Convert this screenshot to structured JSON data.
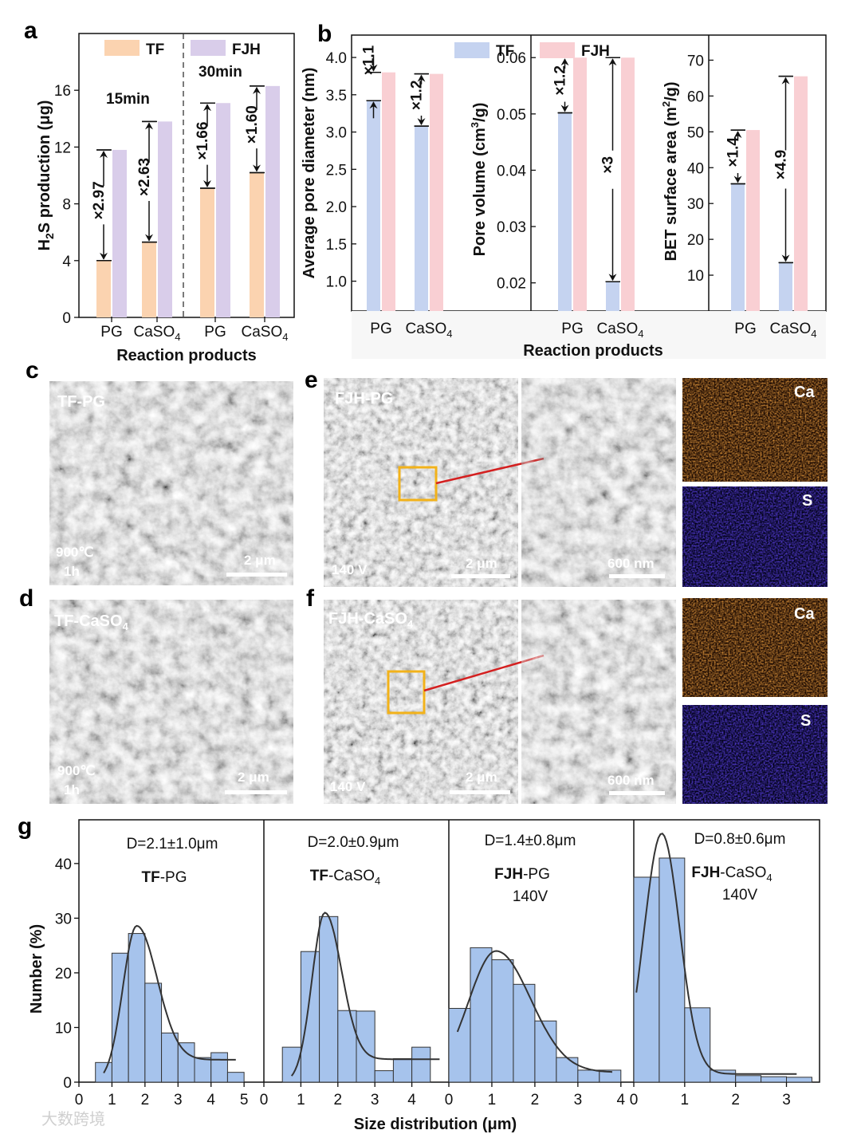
{
  "colors": {
    "tf_a": "#fbd3b0",
    "fjh_a": "#d9cdea",
    "tf_b": "#c5d3f0",
    "fjh_b": "#f9cfd3",
    "hist": "#a6c3ec",
    "curve": "#333333",
    "ca": "#d35a12",
    "s": "#1f10d8"
  },
  "panel_a": {
    "letter": "a",
    "legend": [
      "TF",
      "FJH"
    ],
    "time_labels": [
      "15min",
      "30min"
    ],
    "ylabel_main": "H",
    "ylabel_sub": "2",
    "ylabel_rest": "S production (μg)",
    "xlabel": "Reaction products",
    "yticks": [
      "0",
      "4",
      "8",
      "12",
      "16"
    ],
    "xcats": [
      {
        "main": "PG",
        "sub": ""
      },
      {
        "main": "CaSO",
        "sub": "4"
      },
      {
        "main": "PG",
        "sub": ""
      },
      {
        "main": "CaSO",
        "sub": "4"
      }
    ]
  },
  "panel_b": {
    "letter": "b",
    "legend": [
      "TF",
      "FJH"
    ],
    "xlabel": "Reaction products",
    "pore_diameter": {
      "ylabel": "Average pore diameter (nm)",
      "yticks": [
        "1.0",
        "1.5",
        "2.0",
        "2.5",
        "3.0",
        "3.5",
        "4.0"
      ],
      "xcats": [
        {
          "main": "PG",
          "sub": ""
        },
        {
          "main": "CaSO",
          "sub": "4"
        }
      ]
    },
    "pore_volume": {
      "ylabel_main": "Pore volume (cm",
      "ylabel_sup": "3",
      "ylabel_rest": "/g)",
      "yticks": [
        "0.02",
        "0.03",
        "0.04",
        "0.05",
        "0.06"
      ],
      "xcats": [
        {
          "main": "PG",
          "sub": ""
        },
        {
          "main": "CaSO",
          "sub": "4"
        }
      ]
    },
    "bet": {
      "ylabel_main": "BET surface area (m",
      "ylabel_sup": "2",
      "ylabel_rest": "/g)",
      "yticks": [
        "10",
        "20",
        "30",
        "40",
        "50",
        "60",
        "70"
      ],
      "xcats": [
        {
          "main": "PG",
          "sub": ""
        },
        {
          "main": "CaSO",
          "sub": "4"
        }
      ]
    }
  },
  "sem": {
    "c": {
      "letter": "c",
      "title": "TF-PG",
      "cond1": "900℃",
      "cond2": "1h",
      "scale": "2 μm"
    },
    "d": {
      "letter": "d",
      "title_main": "TF-CaSO",
      "title_sub": "4",
      "cond1": "900℃",
      "cond2": "1h",
      "scale": "2 μm"
    },
    "e": {
      "letter": "e",
      "title": "FJH-PG",
      "voltage": "140 V",
      "scale": "2 μm",
      "zoom_scale": "600 nm",
      "map1": "Ca",
      "map2": "S"
    },
    "f": {
      "letter": "f",
      "title_main": "FJH-CaSO",
      "title_sub": "4",
      "voltage": "140 V",
      "scale": "2 μm",
      "zoom_scale": "600 nm",
      "map1": "Ca",
      "map2": "S"
    }
  },
  "panel_g": {
    "letter": "g",
    "ylabel": "Number (%)",
    "xlabel": "Size distribution (μm)",
    "yticks": [
      "0",
      "10",
      "20",
      "30",
      "40"
    ],
    "subplots": [
      {
        "d": "D=2.1±1.0μm",
        "bold": "TF",
        "rest": "-PG",
        "sub": "",
        "line2": "",
        "xticks": [
          "0",
          "1",
          "2",
          "3",
          "4",
          "5"
        ]
      },
      {
        "d": "D=2.0±0.9μm",
        "bold": "TF",
        "rest": "-CaSO",
        "sub": "4",
        "line2": "",
        "xticks": [
          "0",
          "1",
          "2",
          "3",
          "4"
        ]
      },
      {
        "d": "D=1.4±0.8μm",
        "bold": "FJH",
        "rest": "-PG",
        "sub": "",
        "line2": "140V",
        "xticks": [
          "0",
          "1",
          "2",
          "3",
          "4"
        ]
      },
      {
        "d": "D=0.8±0.6μm",
        "bold": "FJH",
        "rest": "-CaSO",
        "sub": "4",
        "line2": "140V",
        "xticks": [
          "0",
          "1",
          "2",
          "3"
        ]
      }
    ]
  },
  "watermark": "大数跨境",
  "chart_data": [
    {
      "type": "bar",
      "title": "",
      "xlabel": "Reaction products",
      "ylabel": "H2S production (μg)",
      "ylim": [
        0,
        20
      ],
      "groups": [
        "15min",
        "30min"
      ],
      "categories": [
        "PG",
        "CaSO4",
        "PG",
        "CaSO4"
      ],
      "series": [
        {
          "name": "TF",
          "values": [
            4.0,
            5.3,
            9.1,
            10.2
          ]
        },
        {
          "name": "FJH",
          "values": [
            11.8,
            13.8,
            15.1,
            16.3
          ]
        }
      ],
      "annotations": [
        "×2.97",
        "×2.63",
        "×1.66",
        "×1.60"
      ]
    },
    {
      "type": "bar",
      "title": "",
      "ylabel": "Average pore diameter (nm)",
      "ylim": [
        0.6,
        4.3
      ],
      "categories": [
        "PG",
        "CaSO4"
      ],
      "series": [
        {
          "name": "TF",
          "values": [
            3.42,
            3.08
          ]
        },
        {
          "name": "FJH",
          "values": [
            3.8,
            3.78
          ]
        }
      ],
      "annotations": [
        "×1.1",
        "×1.2"
      ]
    },
    {
      "type": "bar",
      "title": "",
      "ylabel": "Pore volume (cm3/g)",
      "ylim": [
        0.015,
        0.064
      ],
      "categories": [
        "PG",
        "CaSO4"
      ],
      "series": [
        {
          "name": "TF",
          "values": [
            0.0502,
            0.0202
          ]
        },
        {
          "name": "FJH",
          "values": [
            0.06,
            0.06
          ]
        }
      ],
      "annotations": [
        "×1.2",
        "×3"
      ]
    },
    {
      "type": "bar",
      "title": "",
      "ylabel": "BET surface area (m2/g)",
      "ylim": [
        0,
        77
      ],
      "categories": [
        "PG",
        "CaSO4"
      ],
      "series": [
        {
          "name": "TF",
          "values": [
            35.5,
            13.5
          ]
        },
        {
          "name": "FJH",
          "values": [
            50.5,
            65.5
          ]
        }
      ],
      "annotations": [
        "×1.4",
        "×4.9"
      ]
    },
    {
      "type": "bar",
      "title": "TF-PG",
      "subtitle": "D=2.1±1.0μm",
      "xlabel": "Size distribution (μm)",
      "ylabel": "Number (%)",
      "xlim": [
        0,
        5.6
      ],
      "ylim": [
        0,
        48
      ],
      "bin_edges": [
        0.5,
        1.0,
        1.5,
        2.0,
        2.5,
        3.0,
        3.5,
        4.0,
        4.5,
        5.0
      ],
      "values": [
        3.6,
        23.6,
        27.2,
        18.1,
        9.0,
        7.2,
        4.5,
        5.4,
        1.8
      ],
      "fit": {
        "peak": 1.75,
        "height": 28.6,
        "sigma_left": 0.42,
        "sigma_right": 0.62,
        "floor": 4.1,
        "range": [
          0.75,
          4.75
        ]
      }
    },
    {
      "type": "bar",
      "title": "TF-CaSO4",
      "subtitle": "D=2.0±0.9μm",
      "xlabel": "Size distribution (μm)",
      "ylabel": "Number (%)",
      "xlim": [
        0,
        5.0
      ],
      "ylim": [
        0,
        48
      ],
      "bin_edges": [
        0.5,
        1.0,
        1.5,
        2.0,
        2.5,
        3.0,
        3.5,
        4.0,
        4.5
      ],
      "values": [
        6.4,
        23.9,
        30.3,
        13.1,
        13.0,
        2.1,
        4.3,
        6.4
      ],
      "fit": {
        "peak": 1.65,
        "height": 31.0,
        "sigma_left": 0.35,
        "sigma_right": 0.45,
        "floor": 4.2,
        "range": [
          0.75,
          4.75
        ]
      }
    },
    {
      "type": "bar",
      "title": "FJH-PG",
      "subtitle": "D=1.4±0.8μm",
      "xlabel": "Size distribution (μm)",
      "ylabel": "Number (%)",
      "xlim": [
        0,
        4.3
      ],
      "ylim": [
        0,
        48
      ],
      "bin_edges": [
        0,
        0.5,
        1.0,
        1.5,
        2.0,
        2.5,
        3.0,
        3.5,
        4.0
      ],
      "values": [
        13.5,
        24.6,
        22.4,
        17.9,
        11.2,
        4.5,
        2.2,
        2.2
      ],
      "fit": {
        "peak": 1.1,
        "height": 24.0,
        "sigma_left": 0.65,
        "sigma_right": 0.8,
        "floor": 1.8,
        "range": [
          0.2,
          3.8
        ]
      }
    },
    {
      "type": "bar",
      "title": "FJH-CaSO4",
      "subtitle": "D=0.8±0.6μm",
      "xlabel": "Size distribution (μm)",
      "ylabel": "Number (%)",
      "xlim": [
        0,
        3.65
      ],
      "ylim": [
        0,
        48
      ],
      "bin_edges": [
        0,
        0.5,
        1.0,
        1.5,
        2.0,
        2.5,
        3.0,
        3.5
      ],
      "values": [
        37.5,
        41.0,
        13.6,
        2.2,
        1.2,
        1.0,
        0.9
      ],
      "fit": {
        "peak": 0.55,
        "height": 45.5,
        "sigma_left": 0.35,
        "sigma_right": 0.35,
        "floor": 1.5,
        "range": [
          0.05,
          3.2
        ]
      }
    }
  ]
}
